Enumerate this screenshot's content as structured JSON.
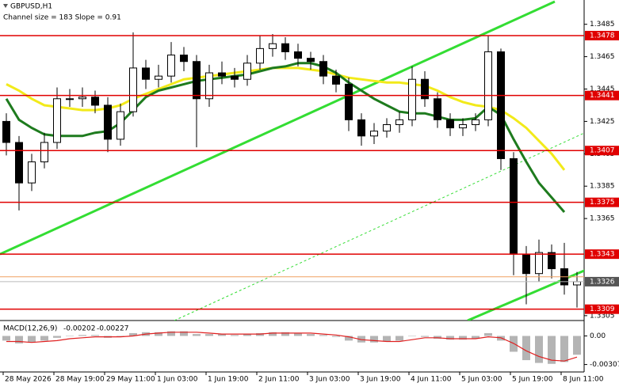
{
  "chart_data": {
    "type": "candlestick",
    "title": "GBPUSD,H1",
    "subtitle": "Channel size = 183 Slope = 0.91",
    "xlim": [
      -0.5,
      45.5
    ],
    "xticks": [
      {
        "value": -0.25,
        "label": "28 May 2026"
      },
      {
        "value": 3.75,
        "label": "28 May 19:00"
      },
      {
        "value": 7.75,
        "label": "29 May 11:00"
      },
      {
        "value": 11.75,
        "label": "1 Jun 03:00"
      },
      {
        "value": 15.75,
        "label": "1 Jun 19:00"
      },
      {
        "value": 19.75,
        "label": "2 Jun 11:00"
      },
      {
        "value": 23.75,
        "label": "3 Jun 03:00"
      },
      {
        "value": 27.75,
        "label": "3 Jun 19:00"
      },
      {
        "value": 31.75,
        "label": "4 Jun 11:00"
      },
      {
        "value": 35.75,
        "label": "5 Jun 03:00"
      },
      {
        "value": 39.75,
        "label": "5 Jun 19:00"
      },
      {
        "value": 43.75,
        "label": "8 Jun 11:00"
      }
    ],
    "ylim": [
      1.3302,
      1.35
    ],
    "yticks": [
      1.3485,
      1.3465,
      1.3445,
      1.3425,
      1.3405,
      1.3385,
      1.3365,
      1.3305
    ],
    "color": "#000000",
    "open": [
      1.3425,
      1.3412,
      1.3387,
      1.34,
      1.3412,
      1.3439,
      1.3439,
      1.344,
      1.3435,
      1.3414,
      1.3431,
      1.3458,
      1.3451,
      1.3453,
      1.3466,
      1.3462,
      1.3439,
      1.3455,
      1.3453,
      1.3451,
      1.3461,
      1.347,
      1.3473,
      1.3468,
      1.3464,
      1.3462,
      1.3453,
      1.3448,
      1.3426,
      1.3416,
      1.3419,
      1.3423,
      1.3426,
      1.3451,
      1.3439,
      1.3426,
      1.3421,
      1.3423,
      1.3426,
      1.3468,
      1.3402,
      1.3343,
      1.3331,
      1.3344,
      1.3334,
      1.3324
    ],
    "high": [
      1.343,
      1.3416,
      1.3405,
      1.3418,
      1.3446,
      1.3445,
      1.3446,
      1.3444,
      1.344,
      1.3436,
      1.348,
      1.3463,
      1.346,
      1.3474,
      1.3471,
      1.3466,
      1.346,
      1.3462,
      1.3458,
      1.3466,
      1.3478,
      1.3479,
      1.3477,
      1.3473,
      1.3468,
      1.3466,
      1.3457,
      1.3452,
      1.343,
      1.3424,
      1.3427,
      1.3431,
      1.3459,
      1.3456,
      1.3443,
      1.343,
      1.3427,
      1.343,
      1.3478,
      1.347,
      1.3406,
      1.3348,
      1.3352,
      1.3349,
      1.335,
      1.3332
    ],
    "low": [
      1.3404,
      1.337,
      1.3382,
      1.3396,
      1.3408,
      1.3434,
      1.3434,
      1.343,
      1.3406,
      1.341,
      1.3428,
      1.3445,
      1.3446,
      1.3449,
      1.3456,
      1.3409,
      1.3434,
      1.3448,
      1.3446,
      1.3447,
      1.3457,
      1.3465,
      1.3463,
      1.3459,
      1.3457,
      1.3448,
      1.3443,
      1.3419,
      1.341,
      1.3411,
      1.3415,
      1.3418,
      1.3422,
      1.3434,
      1.3421,
      1.3416,
      1.3416,
      1.3419,
      1.3422,
      1.3395,
      1.333,
      1.3312,
      1.3326,
      1.3328,
      1.3318,
      1.331
    ],
    "close": [
      1.3412,
      1.3387,
      1.34,
      1.3412,
      1.3439,
      1.3439,
      1.344,
      1.3435,
      1.3414,
      1.3431,
      1.3458,
      1.3451,
      1.3453,
      1.3466,
      1.3462,
      1.3439,
      1.3455,
      1.3453,
      1.3451,
      1.3461,
      1.347,
      1.3473,
      1.3468,
      1.3464,
      1.3462,
      1.3453,
      1.3448,
      1.3426,
      1.3416,
      1.3419,
      1.3423,
      1.3426,
      1.3451,
      1.3439,
      1.3426,
      1.3421,
      1.3423,
      1.3426,
      1.3468,
      1.3402,
      1.3343,
      1.3331,
      1.3344,
      1.3334,
      1.3324,
      1.3326
    ],
    "moving_averages": [
      {
        "color": "#f2ea1a",
        "values": [
          1.3448,
          1.3444,
          1.3439,
          1.3435,
          1.3434,
          1.3433,
          1.3432,
          1.3432,
          1.3433,
          1.3435,
          1.3439,
          1.3442,
          1.3445,
          1.3448,
          1.3451,
          1.3452,
          1.3453,
          1.3454,
          1.3455,
          1.3456,
          1.3457,
          1.3458,
          1.3458,
          1.3458,
          1.3457,
          1.3456,
          1.3454,
          1.3452,
          1.3451,
          1.345,
          1.3449,
          1.3449,
          1.3448,
          1.3447,
          1.3444,
          1.344,
          1.3437,
          1.3435,
          1.3434,
          1.3432,
          1.3427,
          1.3421,
          1.3413,
          1.3405,
          1.3395,
          null
        ]
      },
      {
        "color": "#1e7b1e",
        "values": [
          1.3439,
          1.3426,
          1.3421,
          1.3417,
          1.3416,
          1.3416,
          1.3416,
          1.3418,
          1.3419,
          1.3424,
          1.3432,
          1.344,
          1.3444,
          1.3446,
          1.3448,
          1.345,
          1.3451,
          1.3452,
          1.3453,
          1.3454,
          1.3456,
          1.3458,
          1.3459,
          1.3461,
          1.3461,
          1.3459,
          1.3455,
          1.3449,
          1.3444,
          1.3439,
          1.3435,
          1.3431,
          1.343,
          1.343,
          1.3428,
          1.3426,
          1.3426,
          1.3427,
          1.3434,
          1.3429,
          1.3414,
          1.34,
          1.3387,
          1.3378,
          1.3369,
          null
        ]
      }
    ],
    "channel": [
      {
        "color": "#33dd33",
        "x": [
          -0.5,
          43.25
        ],
        "values": [
          1.3343,
          1.3499
        ]
      },
      {
        "color": "#33dd33",
        "x": [
          36.375,
          45.625
        ],
        "values": [
          1.3302,
          1.3333
        ]
      },
      {
        "color": "#33dd33",
        "dashed": true,
        "x": [
          13.25,
          45.625
        ],
        "values": [
          1.3302,
          1.3418
        ]
      }
    ],
    "levels": {
      "color": "#e00000",
      "values": [
        1.3478,
        1.3441,
        1.3407,
        1.3375,
        1.3343,
        1.3309
      ]
    },
    "bid": 1.3326,
    "ask": 1.3329,
    "ask_color": "#f0a060",
    "macd": {
      "title": "MACD(12,26,9)",
      "main": -0.00202,
      "signal_value": -0.00227,
      "ylim": [
        -0.0037,
        0.0014
      ],
      "yticks": [
        {
          "value": 0,
          "label": "0.00"
        },
        -0.00307
      ],
      "hist_color": "#b4b4b4",
      "signal_color": "#e02020",
      "histogram": [
        -0.0005,
        -0.0008,
        -0.0007,
        -0.0005,
        -0.0002,
        0,
        0.0001,
        0.0001,
        -0.0002,
        -0.0001,
        0.0003,
        0.0004,
        0.0004,
        0.0005,
        0.0005,
        0.0002,
        0.0002,
        0.0002,
        0.0001,
        0.0002,
        0.0003,
        0.0004,
        0.0004,
        0.0003,
        0.0002,
        0.0001,
        -0.0001,
        -0.0005,
        -0.0007,
        -0.0007,
        -0.0006,
        -0.0005,
        0,
        -0.0001,
        -0.0003,
        -0.0004,
        -0.0004,
        -0.0003,
        0.0003,
        -0.0005,
        -0.0017,
        -0.0026,
        -0.0029,
        -0.003,
        -0.0028,
        -0.00202
      ],
      "signal": [
        -0.0006,
        -0.0006,
        -0.0007,
        -0.0006,
        -0.0005,
        -0.0003,
        -0.0002,
        -0.0001,
        -0.0001,
        -0.0001,
        0,
        0.0002,
        0.0003,
        0.0004,
        0.0004,
        0.0004,
        0.0003,
        0.0002,
        0.0002,
        0.0002,
        0.0002,
        0.0003,
        0.0003,
        0.0003,
        0.0003,
        0.0002,
        0.0001,
        -0.0001,
        -0.0004,
        -0.0005,
        -0.0006,
        -0.0006,
        -0.0004,
        -0.0002,
        -0.0002,
        -0.0003,
        -0.0003,
        -0.0003,
        -0.0001,
        -0.0002,
        -0.0008,
        -0.0016,
        -0.0022,
        -0.0026,
        -0.0027,
        -0.00227
      ]
    }
  }
}
